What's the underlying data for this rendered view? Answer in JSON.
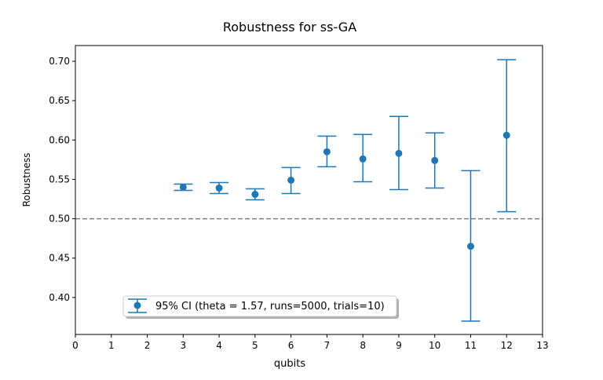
{
  "chart_data": {
    "type": "scatter",
    "title": "Robustness for ss-GA",
    "xlabel": "qubits",
    "ylabel": "Robustness",
    "xlim": [
      0,
      13
    ],
    "ylim": [
      0.353,
      0.72
    ],
    "xticks": [
      "0",
      "1",
      "2",
      "3",
      "4",
      "5",
      "6",
      "7",
      "8",
      "9",
      "10",
      "11",
      "12",
      "13"
    ],
    "yticks": [
      "0.40",
      "0.45",
      "0.50",
      "0.55",
      "0.60",
      "0.65",
      "0.70"
    ],
    "reference_line": {
      "y": 0.5,
      "style": "dashed",
      "color": "#808080"
    },
    "legend": {
      "label": "95% CI (theta = 1.57, runs=5000, trials=10)",
      "placement": "lower-left"
    },
    "grid": false,
    "series": [
      {
        "color": "#1f77b4",
        "points": [
          {
            "x": 3,
            "y": 0.54,
            "lower": 0.536,
            "upper": 0.544
          },
          {
            "x": 4,
            "y": 0.539,
            "lower": 0.532,
            "upper": 0.546
          },
          {
            "x": 5,
            "y": 0.531,
            "lower": 0.524,
            "upper": 0.538
          },
          {
            "x": 6,
            "y": 0.549,
            "lower": 0.532,
            "upper": 0.565
          },
          {
            "x": 7,
            "y": 0.585,
            "lower": 0.566,
            "upper": 0.605
          },
          {
            "x": 8,
            "y": 0.576,
            "lower": 0.547,
            "upper": 0.607
          },
          {
            "x": 9,
            "y": 0.583,
            "lower": 0.537,
            "upper": 0.63
          },
          {
            "x": 10,
            "y": 0.574,
            "lower": 0.539,
            "upper": 0.609
          },
          {
            "x": 11,
            "y": 0.465,
            "lower": 0.37,
            "upper": 0.561
          },
          {
            "x": 12,
            "y": 0.606,
            "lower": 0.509,
            "upper": 0.702
          }
        ]
      }
    ]
  }
}
